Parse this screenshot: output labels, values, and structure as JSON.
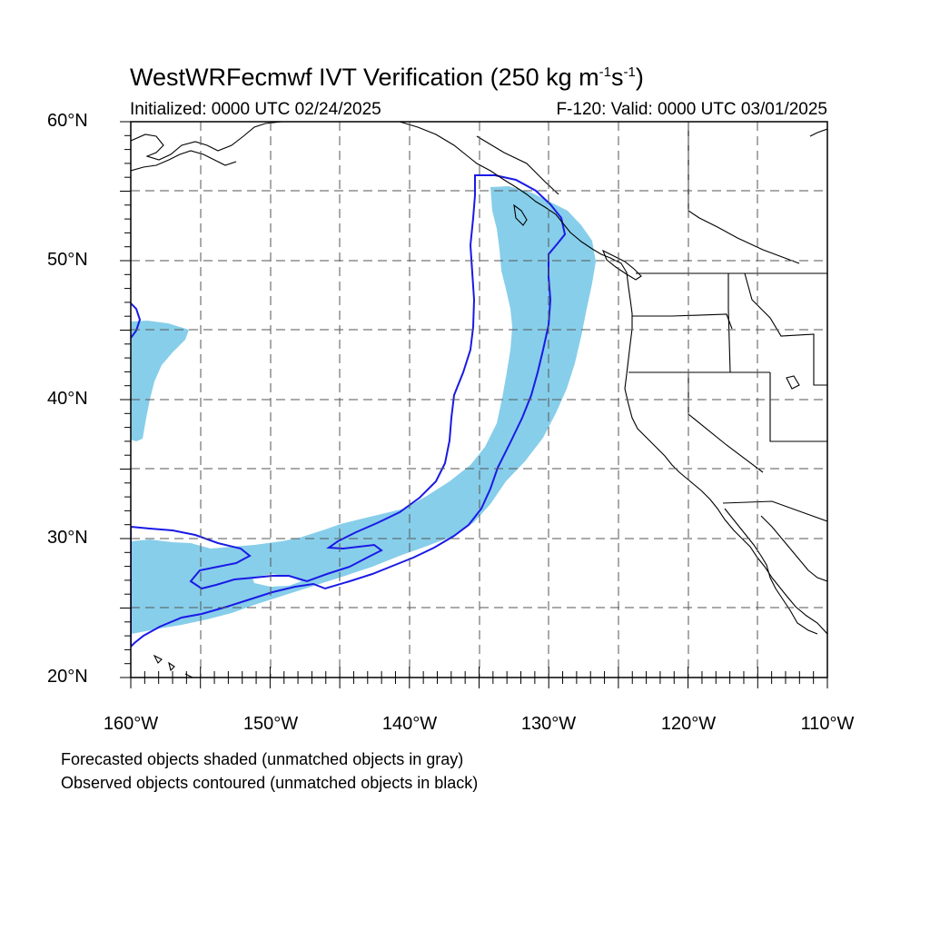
{
  "title": {
    "main_prefix": "WestWRFecmwf IVT Verification (250 kg m",
    "exp1": "-1",
    "mid": "s",
    "exp2": "-1",
    "suffix": ")"
  },
  "subtitle_left": "Initialized: 0000 UTC 02/24/2025",
  "subtitle_right": "F-120: Valid: 0000 UTC 03/01/2025",
  "axes": {
    "lon_range": [
      -160,
      -110
    ],
    "lat_range": [
      20,
      60
    ],
    "x_tick_labels": [
      "160°W",
      "150°W",
      "140°W",
      "130°W",
      "120°W",
      "110°W"
    ],
    "y_tick_labels": [
      "60°N",
      "50°N",
      "40°N",
      "30°N",
      "20°N"
    ],
    "gridlines": "dashed every 5°"
  },
  "legend_notes": [
    "Forecasted objects shaded (unmatched objects in gray)",
    "Observed objects contoured (unmatched objects in black)"
  ],
  "colors": {
    "forecast_fill": "#87ceea",
    "observed_contour": "#1a1ae6",
    "coastline": "#000000",
    "grid": "#555555"
  },
  "objects": {
    "forecast_shaded": "matched atmospheric river object, sky-blue fill",
    "observed_contour": "matched atmospheric river object, blue contour"
  }
}
